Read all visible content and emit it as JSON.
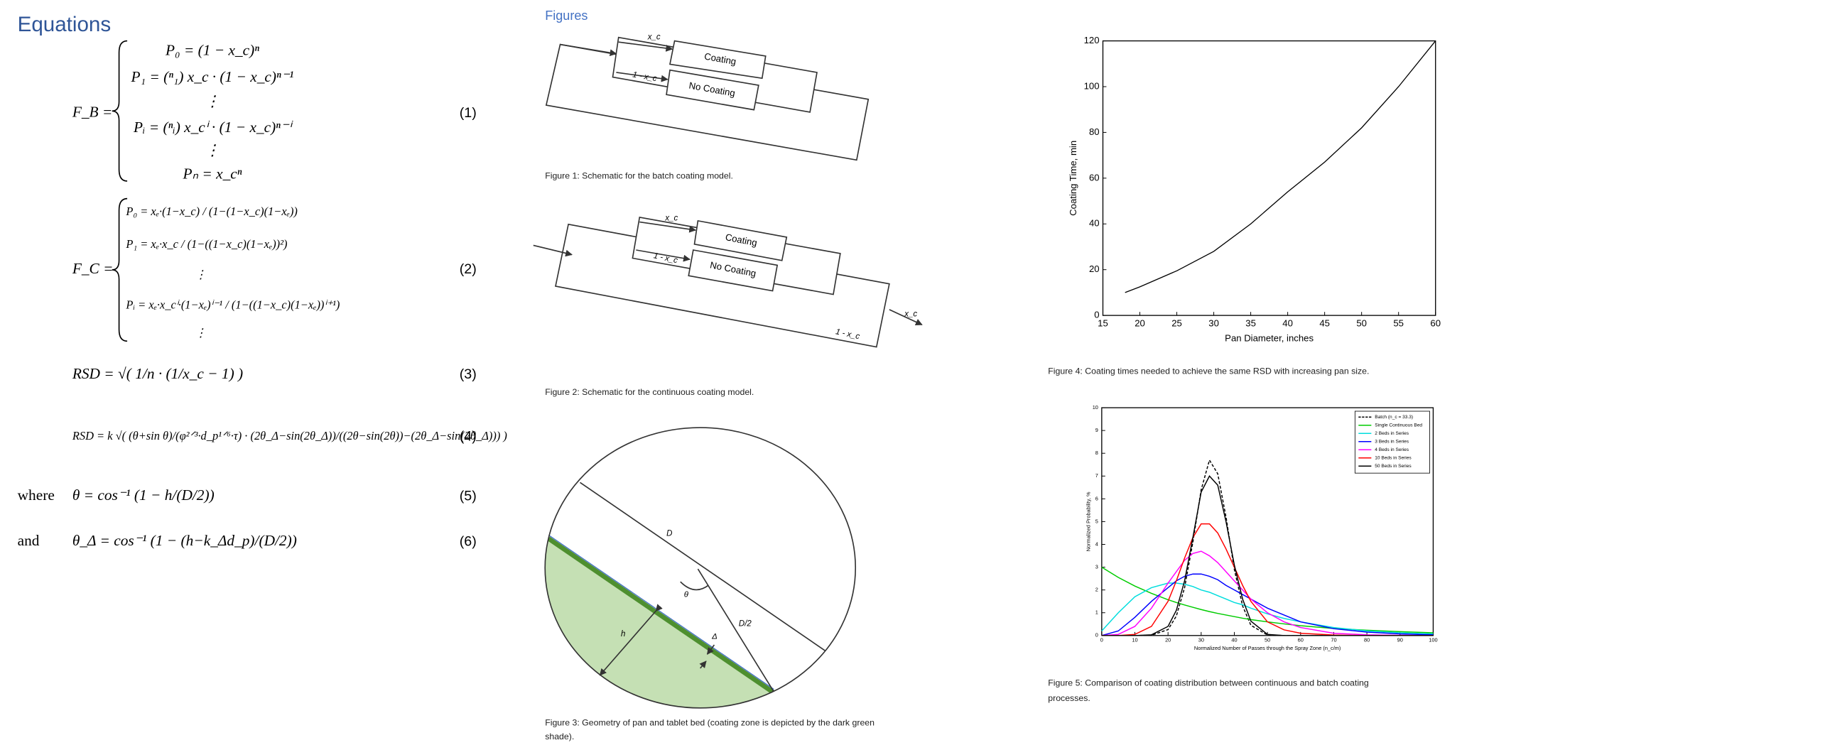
{
  "equations": {
    "title": "Equations",
    "items": [
      {
        "lhs": "F_B =",
        "lines": [
          "P₀ = (1 − x_c)ⁿ",
          "P₁ = (ⁿ₁) x_c · (1 − x_c)ⁿ⁻¹",
          "⋮",
          "Pᵢ = (ⁿᵢ) x_cⁱ · (1 − x_c)ⁿ⁻ⁱ",
          "⋮",
          "Pₙ = x_cⁿ"
        ],
        "number": "(1)"
      },
      {
        "lhs": "F_C =",
        "lines": [
          "P₀ = xₑ·(1−x_c) / (1−(1−x_c)(1−xₑ))",
          "P₁ = xₑ·x_c / (1−((1−x_c)(1−xₑ))²)",
          "⋮",
          "Pᵢ = xₑ·x_cⁱ·(1−xₑ)ⁱ⁻¹ / (1−((1−x_c)(1−xₑ))ⁱ⁺¹)",
          "⋮"
        ],
        "number": "(2)"
      },
      {
        "expr": "RSD = √( 1/n · (1/x_c − 1) )",
        "number": "(3)"
      },
      {
        "expr": "RSD = k √( (θ+sin θ)/(φ²ᐟ³·d_p¹ᐟ⁶·τ) · (2θ_Δ−sin(2θ_Δ))/((2θ−sin(2θ))−(2θ_Δ−sin(2θ_Δ))) )",
        "number": "(4)"
      },
      {
        "prefix": "where",
        "expr": "θ = cos⁻¹ (1 − h/(D/2))",
        "number": "(5)"
      },
      {
        "prefix": "and",
        "expr": "θ_Δ = cos⁻¹ (1 − (h−k_Δd_p)/(D/2))",
        "number": "(6)"
      }
    ]
  },
  "figures": {
    "heading": "Figures",
    "fig1": {
      "labels": [
        "x_c",
        "1 - x_c",
        "Coating",
        "No Coating"
      ],
      "caption": "Figure 1: Schematic for the batch coating model."
    },
    "fig2": {
      "labels": [
        "x_c",
        "1 - x_c",
        "Coating",
        "No Coating",
        "x_c",
        "1 - x_c"
      ],
      "caption": "Figure 2: Schematic for the continuous coating model."
    },
    "fig3": {
      "labels": [
        "D",
        "θ",
        "D/2",
        "Δ",
        "h"
      ],
      "caption_lines": [
        "Figure 3: Geometry of pan and tablet bed (coating zone is depicted by the dark green",
        "shade)."
      ]
    }
  },
  "chart_data": [
    {
      "type": "line",
      "x_label": "Pan Diameter, inches",
      "y_label": "Coating Time, min",
      "x": [
        18,
        20,
        25,
        30,
        35,
        40,
        45,
        50,
        55,
        60
      ],
      "values": [
        10,
        12.5,
        19.5,
        28,
        40,
        54,
        67,
        82,
        100,
        120
      ],
      "color": "#000000",
      "xlim": [
        15,
        60
      ],
      "ylim": [
        0,
        120
      ],
      "xticks": [
        15,
        20,
        25,
        30,
        35,
        40,
        45,
        50,
        55,
        60
      ],
      "yticks": [
        0,
        20,
        40,
        60,
        80,
        100,
        120
      ],
      "caption_lines": [
        "Figure 4: Coating times needed to achieve the same RSD with increasing pan size."
      ]
    },
    {
      "type": "line",
      "x_label": "Normalized Number of Passes through the Spray Zone (n_c/m)",
      "y_label": "Normalized Probability, %",
      "x": [
        0,
        5,
        10,
        15,
        20,
        22.5,
        25,
        27.5,
        30,
        32.5,
        35,
        37.5,
        40,
        42.5,
        45,
        50,
        55,
        60,
        70,
        80,
        90,
        100
      ],
      "series": [
        {
          "name": "Batch (n_c = 33.3)",
          "color": "#000000",
          "dashed": true,
          "values": [
            0,
            0,
            0,
            0.01,
            0.26,
            0.85,
            2.1,
            4.1,
            6.4,
            7.7,
            7.1,
            5.2,
            2.9,
            1.3,
            0.45,
            0.02,
            0,
            0,
            0,
            0,
            0,
            0
          ]
        },
        {
          "name": "Single Continuous Bed",
          "color": "#00cc00",
          "values": [
            3.0,
            2.55,
            2.17,
            1.85,
            1.57,
            1.45,
            1.34,
            1.24,
            1.14,
            1.05,
            0.97,
            0.9,
            0.83,
            0.76,
            0.7,
            0.6,
            0.51,
            0.43,
            0.31,
            0.23,
            0.17,
            0.12
          ]
        },
        {
          "name": "2 Beds in Series",
          "color": "#00dddd",
          "values": [
            0.2,
            1.0,
            1.7,
            2.1,
            2.3,
            2.3,
            2.25,
            2.15,
            2.0,
            1.9,
            1.75,
            1.6,
            1.45,
            1.35,
            1.2,
            0.95,
            0.75,
            0.6,
            0.35,
            0.2,
            0.12,
            0.07
          ]
        },
        {
          "name": "3 Beds in Series",
          "color": "#0000ff",
          "values": [
            0,
            0.2,
            0.8,
            1.5,
            2.1,
            2.4,
            2.6,
            2.7,
            2.7,
            2.6,
            2.45,
            2.2,
            2.0,
            1.8,
            1.6,
            1.2,
            0.9,
            0.6,
            0.3,
            0.15,
            0.07,
            0.03
          ]
        },
        {
          "name": "4 Beds in Series",
          "color": "#ff00ff",
          "values": [
            0,
            0.05,
            0.4,
            1.2,
            2.3,
            2.8,
            3.3,
            3.6,
            3.7,
            3.5,
            3.2,
            2.8,
            2.4,
            2.0,
            1.6,
            1.0,
            0.6,
            0.35,
            0.1,
            0.03,
            0.01,
            0
          ]
        },
        {
          "name": "10 Beds in Series",
          "color": "#ff0000",
          "values": [
            0,
            0,
            0.05,
            0.4,
            1.5,
            2.4,
            3.4,
            4.3,
            4.9,
            4.9,
            4.5,
            3.8,
            3.0,
            2.2,
            1.5,
            0.6,
            0.25,
            0.1,
            0.02,
            0,
            0,
            0
          ]
        },
        {
          "name": "50 Beds in Series",
          "color": "#000000",
          "values": [
            0,
            0,
            0,
            0.03,
            0.4,
            1.1,
            2.4,
            4.3,
            6.3,
            7.0,
            6.6,
            5.0,
            3.1,
            1.6,
            0.63,
            0.05,
            0,
            0,
            0,
            0,
            0,
            0
          ]
        }
      ],
      "xlim": [
        0,
        100
      ],
      "ylim": [
        0,
        10
      ],
      "xticks": [
        0,
        10,
        20,
        30,
        40,
        50,
        60,
        70,
        80,
        90,
        100
      ],
      "yticks": [
        0,
        1,
        2,
        3,
        4,
        5,
        6,
        7,
        8,
        9,
        10
      ],
      "legend": "upper right",
      "caption_lines": [
        "Figure 5: Comparison of coating distribution between continuous and batch coating",
        "processes."
      ]
    }
  ]
}
